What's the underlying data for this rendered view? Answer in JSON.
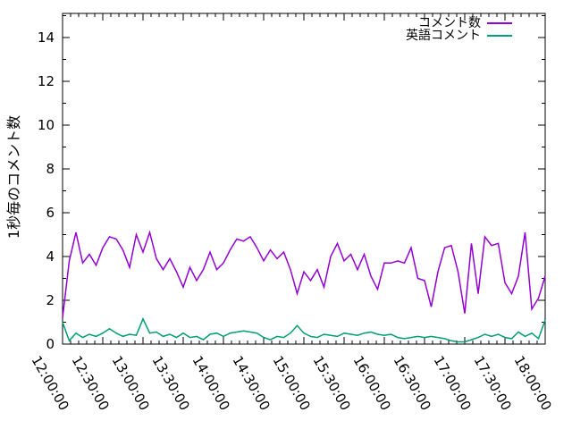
{
  "chart_data": {
    "type": "line",
    "title": "",
    "xlabel": "",
    "ylabel": "1秒毎のコメント数",
    "x_tick_labels": [
      "12:00:00",
      "12:30:00",
      "13:00:00",
      "13:30:00",
      "14:00:00",
      "14:30:00",
      "15:00:00",
      "15:30:00",
      "16:00:00",
      "16:30:00",
      "17:00:00",
      "17:30:00",
      "18:00:00"
    ],
    "y_ticks": [
      0,
      2,
      4,
      6,
      8,
      10,
      12,
      14
    ],
    "ylim": [
      0,
      15.1
    ],
    "x_range_minutes": [
      0,
      360
    ],
    "x_step_minutes": 5,
    "grid": "off",
    "legend_position": "top-right",
    "axis_color": "#000000",
    "background_color": "#ffffff",
    "series": [
      {
        "name": "コメント数",
        "color": "#9400D3",
        "values": [
          1.2,
          3.8,
          5.1,
          3.7,
          4.1,
          3.6,
          4.4,
          4.9,
          4.8,
          4.3,
          3.5,
          5.0,
          4.2,
          5.1,
          3.9,
          3.4,
          3.9,
          3.3,
          2.6,
          3.5,
          2.9,
          3.4,
          4.2,
          3.4,
          3.7,
          4.3,
          4.8,
          4.7,
          4.9,
          4.4,
          3.8,
          4.3,
          3.9,
          4.2,
          3.4,
          2.3,
          3.3,
          2.9,
          3.4,
          2.6,
          4.0,
          4.6,
          3.8,
          4.1,
          3.4,
          4.1,
          3.1,
          2.5,
          3.7,
          3.7,
          3.8,
          3.7,
          4.4,
          3.0,
          2.9,
          1.7,
          3.3,
          4.4,
          4.5,
          3.3,
          1.4,
          4.6,
          2.3,
          4.9,
          4.5,
          4.6,
          2.8,
          2.3,
          3.1,
          5.1,
          1.6,
          2.1,
          3.1
        ]
      },
      {
        "name": "英語コメント",
        "color": "#009E73",
        "values": [
          1.0,
          0.15,
          0.5,
          0.3,
          0.45,
          0.35,
          0.5,
          0.7,
          0.5,
          0.35,
          0.45,
          0.4,
          1.15,
          0.5,
          0.55,
          0.35,
          0.45,
          0.3,
          0.5,
          0.3,
          0.35,
          0.2,
          0.45,
          0.5,
          0.35,
          0.5,
          0.55,
          0.6,
          0.55,
          0.5,
          0.3,
          0.2,
          0.35,
          0.3,
          0.5,
          0.85,
          0.5,
          0.35,
          0.3,
          0.45,
          0.4,
          0.35,
          0.5,
          0.45,
          0.4,
          0.5,
          0.55,
          0.45,
          0.4,
          0.45,
          0.3,
          0.25,
          0.3,
          0.35,
          0.3,
          0.35,
          0.3,
          0.25,
          0.15,
          0.1,
          0.1,
          0.2,
          0.3,
          0.45,
          0.35,
          0.45,
          0.3,
          0.25,
          0.55,
          0.35,
          0.5,
          0.25,
          1.1
        ]
      }
    ]
  }
}
